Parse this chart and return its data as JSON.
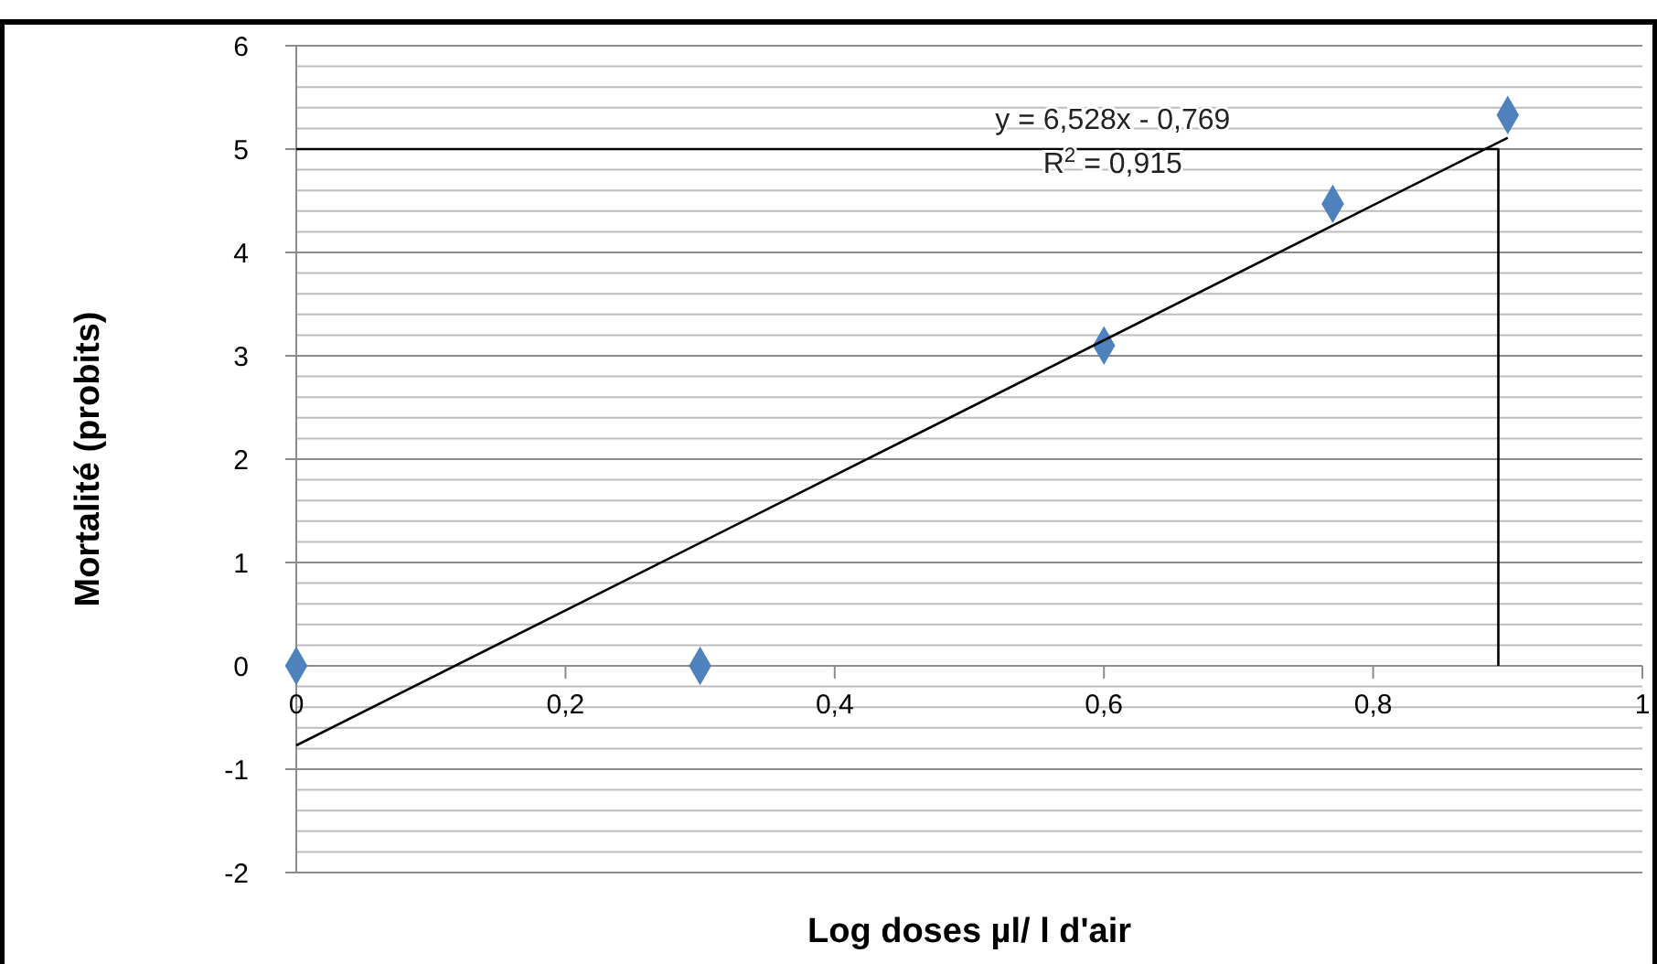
{
  "chart_data": {
    "type": "scatter",
    "xlabel": "Log doses µl/ l d'air",
    "ylabel": "Mortalité (probits)",
    "xlim": [
      0,
      1
    ],
    "xticks": [
      {
        "value": 0,
        "label": "0"
      },
      {
        "value": 0.2,
        "label": "0,2"
      },
      {
        "value": 0.4,
        "label": "0,4"
      },
      {
        "value": 0.6,
        "label": "0,6"
      },
      {
        "value": 0.8,
        "label": "0,8"
      },
      {
        "value": 1,
        "label": "1"
      }
    ],
    "ylim": [
      -2,
      6
    ],
    "yticks": [
      -2,
      {
        "value": -1.8,
        "label": null
      },
      {
        "value": -1.6,
        "label": null
      },
      {
        "value": -1.4,
        "label": null
      },
      {
        "value": -1.2,
        "label": null
      },
      -1,
      {
        "value": -0.8,
        "label": null
      },
      {
        "value": -0.6,
        "label": null
      },
      {
        "value": -0.4,
        "label": null
      },
      {
        "value": -0.2,
        "label": null
      },
      0,
      {
        "value": 0.2,
        "label": null
      },
      {
        "value": 0.4,
        "label": null
      },
      {
        "value": 0.6,
        "label": null
      },
      {
        "value": 0.8,
        "label": null
      },
      1,
      {
        "value": 1.2,
        "label": null
      },
      {
        "value": 1.4,
        "label": null
      },
      {
        "value": 1.6,
        "label": null
      },
      {
        "value": 1.8,
        "label": null
      },
      2,
      {
        "value": 2.2,
        "label": null
      },
      {
        "value": 2.4,
        "label": null
      },
      {
        "value": 2.6,
        "label": null
      },
      {
        "value": 2.8,
        "label": null
      },
      3,
      {
        "value": 3.2,
        "label": null
      },
      {
        "value": 3.4,
        "label": null
      },
      {
        "value": 3.6,
        "label": null
      },
      {
        "value": 3.8,
        "label": null
      },
      4,
      {
        "value": 4.2,
        "label": null
      },
      {
        "value": 4.4,
        "label": null
      },
      {
        "value": 4.6,
        "label": null
      },
      {
        "value": 4.8,
        "label": null
      },
      5,
      {
        "value": 5.2,
        "label": null
      },
      {
        "value": 5.4,
        "label": null
      },
      {
        "value": 5.6,
        "label": null
      },
      {
        "value": 5.8,
        "label": null
      },
      6
    ],
    "grid": "y",
    "series": [
      {
        "color": "#4f81bd",
        "marker": "diamond",
        "x": [
          0,
          0.3,
          0.6,
          0.77,
          0.9
        ],
        "values": [
          0,
          0,
          3.1,
          4.47,
          5.33
        ]
      },
      {
        "type": "line",
        "color": "#000000",
        "marker": "none",
        "line_style": "solid",
        "x": [
          0,
          0.9
        ],
        "values": [
          -0.77,
          5.11
        ]
      },
      {
        "type": "line",
        "color": "#000000",
        "marker": "none",
        "line_style": "solid",
        "x": [
          0,
          0.893,
          0.893
        ],
        "values": [
          5,
          5,
          0
        ]
      }
    ],
    "annotations": [
      "y = 6,528x - 0,769",
      "R$^{2}$ = 0,915"
    ]
  }
}
